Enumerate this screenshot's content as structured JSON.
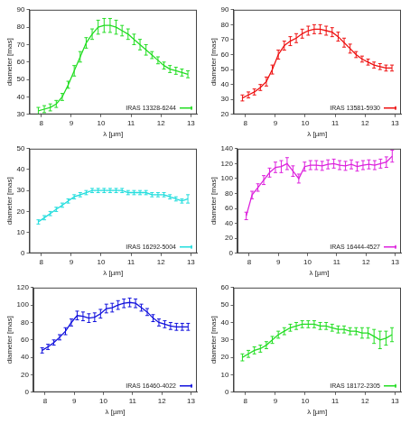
{
  "chart_data": [
    {
      "type": "line",
      "x_label": "λ [µm]",
      "y_label": "diameter [mas]",
      "x": [
        7.9,
        8.1,
        8.3,
        8.5,
        8.7,
        8.9,
        9.1,
        9.3,
        9.5,
        9.7,
        9.9,
        10.1,
        10.3,
        10.5,
        10.7,
        10.9,
        11.1,
        11.3,
        11.5,
        11.7,
        11.9,
        12.1,
        12.3,
        12.5,
        12.7,
        12.9
      ],
      "xlim": [
        7.6,
        13.2
      ],
      "xticks": [
        8,
        9,
        10,
        11,
        12,
        13
      ],
      "ylim": [
        30,
        90
      ],
      "yticks": [
        30,
        40,
        50,
        60,
        70,
        80,
        90
      ],
      "grid": false,
      "legend": "lower right",
      "series": [
        {
          "name": "IRAS 13328-6244",
          "color": "#22dd22",
          "values": [
            32,
            33,
            34,
            36,
            40,
            47,
            55,
            63,
            71,
            76,
            80,
            81,
            81,
            80,
            78,
            76,
            73,
            70,
            67,
            64,
            61,
            58,
            56,
            55,
            54,
            53
          ],
          "errors": [
            2,
            2,
            2,
            2,
            2,
            2,
            3,
            3,
            3,
            3,
            4,
            4,
            4,
            4,
            3,
            3,
            3,
            3,
            3,
            2,
            2,
            2,
            2,
            2,
            2,
            2
          ]
        }
      ]
    },
    {
      "type": "line",
      "x_label": "λ [µm]",
      "y_label": "diameter [mas]",
      "x": [
        7.9,
        8.1,
        8.3,
        8.5,
        8.7,
        8.9,
        9.1,
        9.3,
        9.5,
        9.7,
        9.9,
        10.1,
        10.3,
        10.5,
        10.7,
        10.9,
        11.1,
        11.3,
        11.5,
        11.7,
        11.9,
        12.1,
        12.3,
        12.5,
        12.7,
        12.9
      ],
      "xlim": [
        7.6,
        13.2
      ],
      "xticks": [
        8,
        9,
        10,
        11,
        12,
        13
      ],
      "ylim": [
        20,
        90
      ],
      "yticks": [
        20,
        30,
        40,
        50,
        60,
        70,
        80,
        90
      ],
      "grid": false,
      "legend": "lower right",
      "series": [
        {
          "name": "IRAS 13581-5930",
          "color": "#ee1111",
          "values": [
            31,
            33,
            35,
            38,
            42,
            50,
            60,
            66,
            69,
            71,
            74,
            76,
            77,
            77,
            76,
            75,
            72,
            68,
            64,
            60,
            57,
            55,
            53,
            52,
            51,
            51
          ],
          "errors": [
            2,
            2,
            2,
            2,
            3,
            3,
            3,
            3,
            3,
            3,
            3,
            3,
            3,
            3,
            3,
            3,
            3,
            3,
            3,
            2,
            2,
            2,
            2,
            2,
            2,
            2
          ]
        }
      ]
    },
    {
      "type": "line",
      "x_label": "λ [µm]",
      "y_label": "diameter [mas]",
      "x": [
        7.9,
        8.1,
        8.3,
        8.5,
        8.7,
        8.9,
        9.1,
        9.3,
        9.5,
        9.7,
        9.9,
        10.1,
        10.3,
        10.5,
        10.7,
        10.9,
        11.1,
        11.3,
        11.5,
        11.7,
        11.9,
        12.1,
        12.3,
        12.5,
        12.7,
        12.9
      ],
      "xlim": [
        7.6,
        13.2
      ],
      "xticks": [
        8,
        9,
        10,
        11,
        12,
        13
      ],
      "ylim": [
        0,
        50
      ],
      "yticks": [
        0,
        10,
        20,
        30,
        40,
        50
      ],
      "grid": false,
      "legend": "lower right",
      "series": [
        {
          "name": "IRAS 16292-5004",
          "color": "#22dddd",
          "values": [
            15,
            17,
            19,
            21,
            23,
            25,
            27,
            28,
            29,
            30,
            30,
            30,
            30,
            30,
            30,
            29,
            29,
            29,
            29,
            28,
            28,
            28,
            27,
            26,
            25,
            26
          ],
          "errors": [
            1,
            1,
            1,
            1,
            1,
            1,
            1,
            1,
            1,
            1,
            1,
            1,
            1,
            1,
            1,
            1,
            1,
            1,
            1,
            1,
            1,
            1,
            1,
            1,
            1,
            2
          ]
        }
      ]
    },
    {
      "type": "line",
      "x_label": "λ [µm]",
      "y_label": "diameter [mas]",
      "x": [
        7.9,
        8.1,
        8.3,
        8.5,
        8.7,
        8.9,
        9.1,
        9.3,
        9.5,
        9.7,
        9.9,
        10.1,
        10.3,
        10.5,
        10.7,
        10.9,
        11.1,
        11.3,
        11.5,
        11.7,
        11.9,
        12.1,
        12.3,
        12.5,
        12.7,
        12.9
      ],
      "xlim": [
        7.6,
        13.2
      ],
      "xticks": [
        8,
        9,
        10,
        11,
        12,
        13
      ],
      "ylim": [
        0,
        140
      ],
      "yticks": [
        0,
        20,
        40,
        60,
        80,
        100,
        120,
        140
      ],
      "grid": false,
      "legend": "lower right",
      "series": [
        {
          "name": "IRAS 16444-4527",
          "color": "#dd22dd",
          "values": [
            50,
            78,
            88,
            98,
            108,
            115,
            116,
            120,
            110,
            100,
            116,
            118,
            118,
            117,
            119,
            120,
            118,
            117,
            119,
            116,
            118,
            119,
            118,
            120,
            122,
            130
          ],
          "errors": [
            5,
            5,
            5,
            6,
            6,
            7,
            8,
            8,
            7,
            6,
            6,
            6,
            6,
            6,
            6,
            6,
            6,
            6,
            6,
            6,
            6,
            6,
            6,
            6,
            7,
            8
          ]
        }
      ]
    },
    {
      "type": "line",
      "x_label": "λ [µm]",
      "y_label": "diameter [mas]",
      "x": [
        7.9,
        8.1,
        8.3,
        8.5,
        8.7,
        8.9,
        9.1,
        9.3,
        9.5,
        9.7,
        9.9,
        10.1,
        10.3,
        10.5,
        10.7,
        10.9,
        11.1,
        11.3,
        11.5,
        11.7,
        11.9,
        12.1,
        12.3,
        12.5,
        12.7,
        12.9
      ],
      "xlim": [
        7.6,
        13.2
      ],
      "xticks": [
        8,
        9,
        10,
        11,
        12,
        13
      ],
      "ylim": [
        0,
        120
      ],
      "yticks": [
        0,
        20,
        40,
        60,
        80,
        100,
        120
      ],
      "grid": false,
      "legend": "lower right",
      "series": [
        {
          "name": "IRAS 16460-4022",
          "color": "#1111dd",
          "values": [
            48,
            52,
            57,
            63,
            70,
            80,
            88,
            87,
            85,
            86,
            90,
            96,
            97,
            100,
            102,
            103,
            102,
            97,
            92,
            85,
            80,
            78,
            76,
            75,
            75,
            75
          ],
          "errors": [
            3,
            3,
            3,
            3,
            4,
            4,
            5,
            5,
            5,
            5,
            5,
            5,
            5,
            5,
            5,
            5,
            5,
            4,
            4,
            4,
            4,
            4,
            4,
            4,
            4,
            4
          ]
        }
      ]
    },
    {
      "type": "line",
      "x_label": "λ [µm]",
      "y_label": "diameter [mas]",
      "x": [
        7.9,
        8.1,
        8.3,
        8.5,
        8.7,
        8.9,
        9.1,
        9.3,
        9.5,
        9.7,
        9.9,
        10.1,
        10.3,
        10.5,
        10.7,
        10.9,
        11.1,
        11.3,
        11.5,
        11.7,
        11.9,
        12.1,
        12.3,
        12.5,
        12.7,
        12.9
      ],
      "xlim": [
        7.6,
        13.2
      ],
      "xticks": [
        8,
        9,
        10,
        11,
        12,
        13
      ],
      "ylim": [
        0,
        60
      ],
      "yticks": [
        0,
        10,
        20,
        30,
        40,
        50,
        60
      ],
      "grid": false,
      "legend": "lower right",
      "series": [
        {
          "name": "IRAS 18172-2305",
          "color": "#22dd22",
          "values": [
            20,
            22,
            24,
            25,
            27,
            30,
            33,
            35,
            37,
            38,
            39,
            39,
            39,
            38,
            38,
            37,
            36,
            36,
            35,
            35,
            34,
            34,
            32,
            30,
            31,
            33
          ],
          "errors": [
            2,
            2,
            2,
            2,
            2,
            2,
            2,
            2,
            2,
            2,
            2,
            2,
            2,
            2,
            2,
            2,
            2,
            2,
            2,
            2,
            3,
            3,
            4,
            5,
            4,
            4
          ]
        }
      ]
    }
  ]
}
